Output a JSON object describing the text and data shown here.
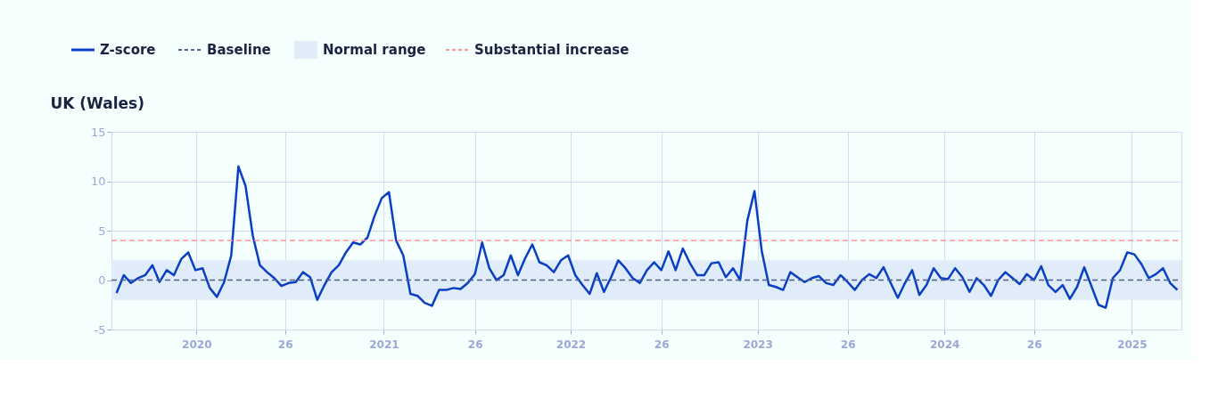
{
  "chart_data": {
    "type": "line",
    "title": "UK (Wales)",
    "x": [
      "2019-07-29",
      "2019-08-12",
      "2019-08-26",
      "2019-09-09",
      "2019-09-23",
      "2019-10-07",
      "2019-10-21",
      "2019-11-04",
      "2019-11-18",
      "2019-12-02",
      "2019-12-16",
      "2019-12-30",
      "2020-01-13",
      "2020-01-27",
      "2020-02-10",
      "2020-02-24",
      "2020-03-09",
      "2020-03-23",
      "2020-04-06",
      "2020-04-20",
      "2020-05-04",
      "2020-05-18",
      "2020-06-01",
      "2020-06-15",
      "2020-06-29",
      "2020-07-13",
      "2020-07-27",
      "2020-08-10",
      "2020-08-24",
      "2020-09-07",
      "2020-09-21",
      "2020-10-05",
      "2020-10-19",
      "2020-11-02",
      "2020-11-16",
      "2020-11-30",
      "2020-12-14",
      "2020-12-28",
      "2021-01-11",
      "2021-01-25",
      "2021-02-08",
      "2021-02-22",
      "2021-03-08",
      "2021-03-22",
      "2021-04-05",
      "2021-04-19",
      "2021-05-03",
      "2021-05-17",
      "2021-05-31",
      "2021-06-14",
      "2021-06-28",
      "2021-07-12",
      "2021-07-26",
      "2021-08-09",
      "2021-08-23",
      "2021-09-06",
      "2021-09-20",
      "2021-10-04",
      "2021-10-18",
      "2021-11-01",
      "2021-11-15",
      "2021-11-29",
      "2021-12-13",
      "2021-12-27",
      "2022-01-10",
      "2022-01-24",
      "2022-02-07",
      "2022-02-21",
      "2022-03-07",
      "2022-03-21",
      "2022-04-04",
      "2022-04-18",
      "2022-05-02",
      "2022-05-16",
      "2022-05-30",
      "2022-06-13",
      "2022-06-27",
      "2022-07-11",
      "2022-07-25",
      "2022-08-08",
      "2022-08-22",
      "2022-09-05",
      "2022-09-19",
      "2022-10-03",
      "2022-10-17",
      "2022-10-31",
      "2022-11-14",
      "2022-11-28",
      "2022-12-12",
      "2022-12-26",
      "2023-01-09",
      "2023-01-23",
      "2023-02-06",
      "2023-02-20",
      "2023-03-06",
      "2023-03-20",
      "2023-04-03",
      "2023-04-17",
      "2023-05-01",
      "2023-05-15",
      "2023-05-29",
      "2023-06-12",
      "2023-06-26",
      "2023-07-10",
      "2023-07-24",
      "2023-08-07",
      "2023-08-21",
      "2023-09-04",
      "2023-09-18",
      "2023-10-02",
      "2023-10-16",
      "2023-10-30",
      "2023-11-13",
      "2023-11-27",
      "2023-12-11",
      "2023-12-25",
      "2024-01-08",
      "2024-01-22",
      "2024-02-05",
      "2024-02-19",
      "2024-03-04",
      "2024-03-18",
      "2024-04-01",
      "2024-04-15",
      "2024-04-29",
      "2024-05-13",
      "2024-05-27",
      "2024-06-10",
      "2024-06-24",
      "2024-07-08",
      "2024-07-22",
      "2024-08-05",
      "2024-08-19",
      "2024-09-02",
      "2024-09-16",
      "2024-09-30",
      "2024-10-14",
      "2024-10-28",
      "2024-11-11",
      "2024-11-25",
      "2024-12-09",
      "2024-12-23",
      "2025-01-06",
      "2025-01-20",
      "2025-02-03",
      "2025-02-17",
      "2025-03-03",
      "2025-03-17",
      "2025-03-31"
    ],
    "series": [
      {
        "name": "Z-score",
        "color": "#0a3fc2",
        "values": [
          -1.3,
          0.5,
          -0.3,
          0.2,
          0.5,
          1.5,
          -0.2,
          1.0,
          0.5,
          2.1,
          2.8,
          1.0,
          1.2,
          -0.8,
          -1.7,
          -0.2,
          2.5,
          11.5,
          9.5,
          4.5,
          1.5,
          0.8,
          0.2,
          -0.6,
          -0.3,
          -0.2,
          0.8,
          0.3,
          -2.0,
          -0.5,
          0.8,
          1.5,
          2.8,
          3.8,
          3.6,
          4.3,
          6.5,
          8.3,
          8.9,
          4.0,
          2.5,
          -1.4,
          -1.6,
          -2.3,
          -2.6,
          -1.0,
          -1.0,
          -0.8,
          -0.9,
          -0.3,
          0.6,
          3.8,
          1.2,
          0.0,
          0.5,
          2.5,
          0.5,
          2.2,
          3.6,
          1.8,
          1.5,
          0.8,
          2.0,
          2.5,
          0.5,
          -0.5,
          -1.4,
          0.7,
          -1.2,
          0.3,
          2.0,
          1.2,
          0.2,
          -0.3,
          1.0,
          1.8,
          1.0,
          2.9,
          1.0,
          3.2,
          1.7,
          0.5,
          0.5,
          1.7,
          1.8,
          0.3,
          1.2,
          0.0,
          6.0,
          9.0,
          3.0,
          -0.5,
          -0.7,
          -1.0,
          0.8,
          0.3,
          -0.2,
          0.2,
          0.4,
          -0.3,
          -0.5,
          0.5,
          -0.2,
          -1.0,
          0.0,
          0.6,
          0.2,
          1.3,
          -0.3,
          -1.8,
          -0.3,
          1.0,
          -1.5,
          -0.5,
          1.2,
          0.2,
          0.1,
          1.2,
          0.3,
          -1.2,
          0.2,
          -0.5,
          -1.6,
          0.0,
          0.8,
          0.2,
          -0.4,
          0.6,
          0.0,
          1.4,
          -0.5,
          -1.2,
          -0.5,
          -1.9,
          -0.7,
          1.3,
          -0.6,
          -2.5,
          -2.8,
          0.2,
          1.0,
          2.8,
          2.6,
          1.6,
          0.2,
          0.6,
          1.2,
          -0.3,
          -1.0
        ]
      }
    ],
    "xlim": [
      "2019-07-19",
      "2025-04-08"
    ],
    "xticks": [
      {
        "value": "2020-01-01",
        "label": "2020"
      },
      {
        "value": "2020-06-22",
        "label": "26"
      },
      {
        "value": "2021-01-01",
        "label": "2021"
      },
      {
        "value": "2021-06-28",
        "label": "26"
      },
      {
        "value": "2022-01-01",
        "label": "2022"
      },
      {
        "value": "2022-06-27",
        "label": "26"
      },
      {
        "value": "2023-01-01",
        "label": "2023"
      },
      {
        "value": "2023-06-26",
        "label": "26"
      },
      {
        "value": "2024-01-01",
        "label": "2024"
      },
      {
        "value": "2024-06-24",
        "label": "26"
      },
      {
        "value": "2025-01-01",
        "label": "2025"
      }
    ],
    "ylim": [
      -5,
      15
    ],
    "yticks": [
      -5,
      0,
      5,
      10,
      15
    ],
    "ref_lines": [
      {
        "axis": "y",
        "value": 0,
        "label": "Baseline",
        "color": "#4a5f8a",
        "line_style": "dashed"
      },
      {
        "axis": "y",
        "value": 4,
        "label": "Substantial increase",
        "color": "#ff8f8f",
        "line_style": "dashed"
      }
    ],
    "bands": [
      {
        "axis": "y",
        "from": -2,
        "to": 2,
        "label": "Normal range",
        "color": "#e1ecfb"
      }
    ],
    "grid": true,
    "legend": "top left",
    "marker": "none",
    "line_style": "solid"
  }
}
